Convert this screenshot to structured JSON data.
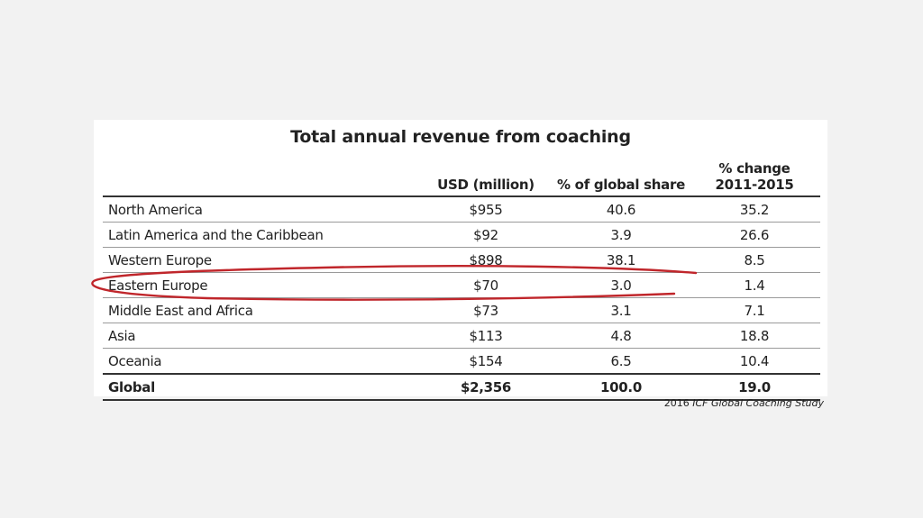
{
  "table": {
    "title": "Total annual revenue from coaching",
    "columns": [
      "",
      "USD (million)",
      "% of global share",
      "% change 2011-2015"
    ],
    "rows": [
      {
        "region": "North America",
        "usd": "$955",
        "share": "40.6",
        "change": "35.2"
      },
      {
        "region": "Latin America and the Caribbean",
        "usd": "$92",
        "share": "3.9",
        "change": "26.6"
      },
      {
        "region": "Western Europe",
        "usd": "$898",
        "share": "38.1",
        "change": "8.5"
      },
      {
        "region": "Eastern Europe",
        "usd": "$70",
        "share": "3.0",
        "change": "1.4"
      },
      {
        "region": "Middle East and Africa",
        "usd": "$73",
        "share": "3.1",
        "change": "7.1"
      },
      {
        "region": "Asia",
        "usd": "$113",
        "share": "4.8",
        "change": "18.8"
      },
      {
        "region": "Oceania",
        "usd": "$154",
        "share": "6.5",
        "change": "10.4"
      }
    ],
    "total": {
      "region": "Global",
      "usd": "$2,356",
      "share": "100.0",
      "change": "19.0"
    }
  },
  "source": {
    "year": "2016",
    "title": "ICF Global Coaching Study"
  },
  "colors": {
    "annotation": "#c0262b",
    "page_background": "#f2f2f2"
  }
}
